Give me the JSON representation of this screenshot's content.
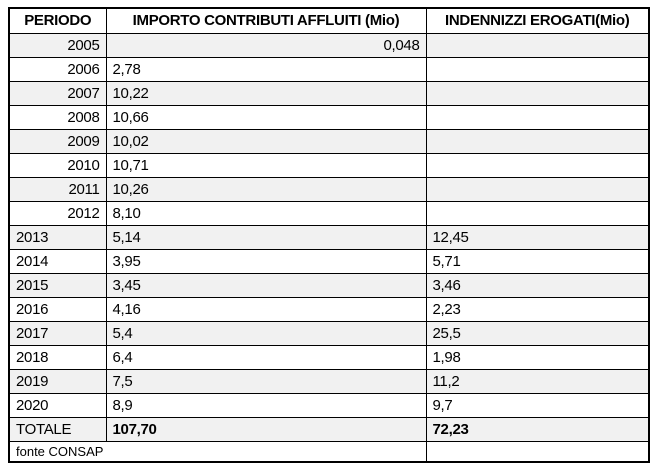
{
  "table": {
    "headers": [
      "PERIODO",
      "IMPORTO CONTRIBUTI AFFLUITI (Mio)",
      "INDENNIZZI EROGATI(Mio)"
    ],
    "rows": [
      {
        "period": "2005",
        "contributi": "0,048",
        "indennizzi": "",
        "period_align": "right",
        "contributi_align": "right"
      },
      {
        "period": "2006",
        "contributi": "2,78",
        "indennizzi": "",
        "period_align": "right",
        "contributi_align": "left"
      },
      {
        "period": "2007",
        "contributi": "10,22",
        "indennizzi": "",
        "period_align": "right",
        "contributi_align": "left"
      },
      {
        "period": "2008",
        "contributi": "10,66",
        "indennizzi": "",
        "period_align": "right",
        "contributi_align": "left"
      },
      {
        "period": "2009",
        "contributi": "10,02",
        "indennizzi": "",
        "period_align": "right",
        "contributi_align": "left"
      },
      {
        "period": "2010",
        "contributi": "10,71",
        "indennizzi": "",
        "period_align": "right",
        "contributi_align": "left"
      },
      {
        "period": "2011",
        "contributi": "10,26",
        "indennizzi": "",
        "period_align": "right",
        "contributi_align": "left"
      },
      {
        "period": "2012",
        "contributi": "8,10",
        "indennizzi": "",
        "period_align": "right",
        "contributi_align": "left"
      },
      {
        "period": "2013",
        "contributi": "5,14",
        "indennizzi": "12,45",
        "period_align": "left",
        "contributi_align": "left"
      },
      {
        "period": "2014",
        "contributi": "3,95",
        "indennizzi": "5,71",
        "period_align": "left",
        "contributi_align": "left"
      },
      {
        "period": "2015",
        "contributi": "3,45",
        "indennizzi": "3,46",
        "period_align": "left",
        "contributi_align": "left"
      },
      {
        "period": "2016",
        "contributi": "4,16",
        "indennizzi": "2,23",
        "period_align": "left",
        "contributi_align": "left"
      },
      {
        "period": "2017",
        "contributi": "5,4",
        "indennizzi": "25,5",
        "period_align": "left",
        "contributi_align": "left"
      },
      {
        "period": "2018",
        "contributi": "6,4",
        "indennizzi": "1,98",
        "period_align": "left",
        "contributi_align": "left"
      },
      {
        "period": "2019",
        "contributi": "7,5",
        "indennizzi": "11,2",
        "period_align": "left",
        "contributi_align": "left"
      },
      {
        "period": "2020",
        "contributi": "8,9",
        "indennizzi": "9,7",
        "period_align": "left",
        "contributi_align": "left"
      }
    ],
    "total": {
      "label": "TOTALE",
      "contributi": "107,70",
      "indennizzi": "72,23"
    },
    "footer": "fonte CONSAP"
  },
  "colors": {
    "row_shade": "#f1f1f1",
    "border": "#000000",
    "background": "#ffffff",
    "text": "#000000"
  }
}
